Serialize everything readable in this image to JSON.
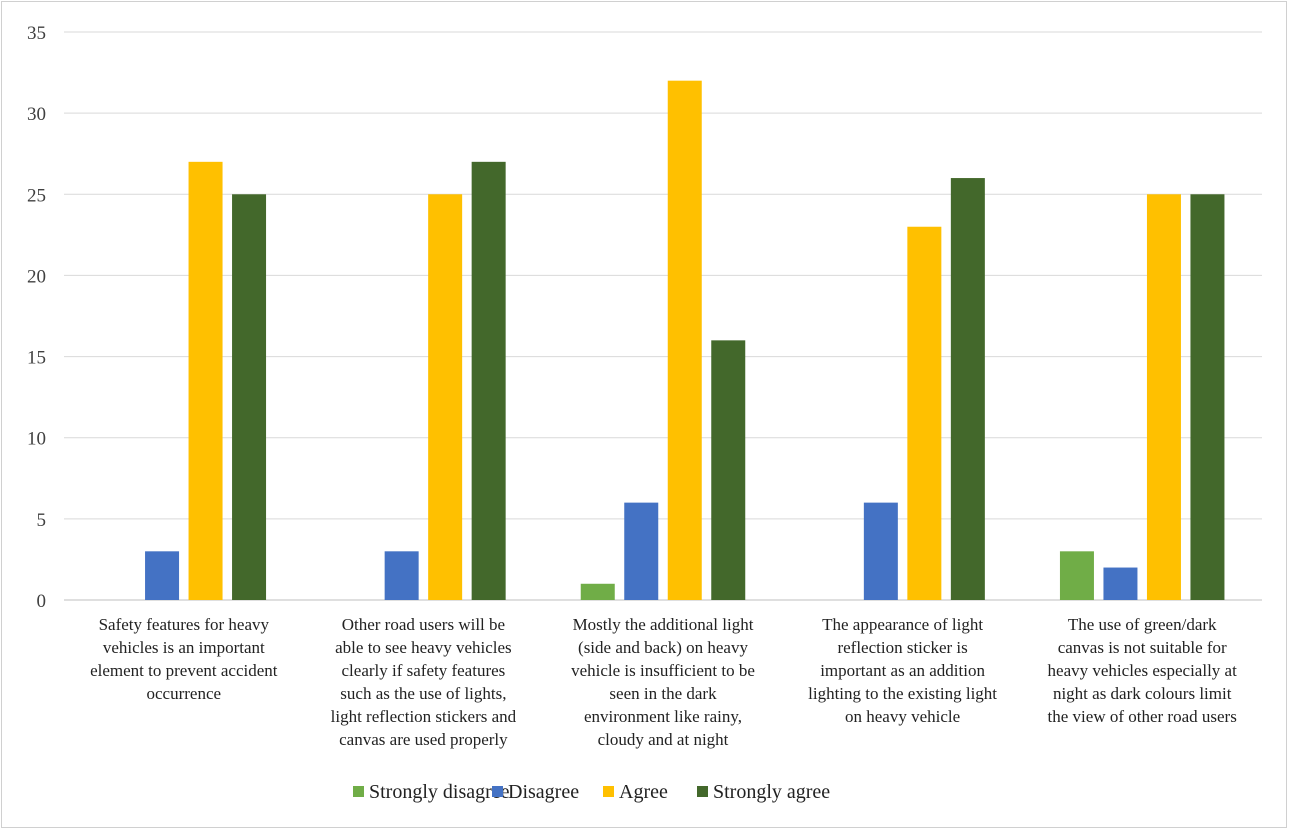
{
  "chart_data": {
    "type": "bar",
    "title": "",
    "xlabel": "",
    "ylabel": "",
    "ylim": [
      0,
      35
    ],
    "yticks": [
      0,
      5,
      10,
      15,
      20,
      25,
      30,
      35
    ],
    "grid": true,
    "legend_position": "bottom",
    "categories": [
      "Safety features for heavy vehicles is an important element to prevent accident occurrence",
      "Other road users will be able to see heavy vehicles clearly if safety features such as the use of lights, light reflection stickers and canvas are used properly",
      "Mostly the additional light (side and back) on heavy vehicle is insufficient to be seen in the dark environment like rainy, cloudy and at night",
      "The appearance of light reflection sticker is important as an addition lighting to the existing light on heavy vehicle",
      "The use of green/dark canvas is not suitable for heavy vehicles especially at night as dark colours limit the view of other road users"
    ],
    "category_lines": [
      [
        "Safety features for heavy",
        "vehicles is an important",
        "element to prevent accident",
        "occurrence"
      ],
      [
        "Other road users will be",
        "able to see heavy vehicles",
        "clearly if safety features",
        "such as the use of lights,",
        "light reflection stickers and",
        "canvas are used properly"
      ],
      [
        "Mostly the additional light",
        "(side and back) on heavy",
        "vehicle is insufficient to be",
        "seen in the dark",
        "environment like rainy,",
        "cloudy and at night"
      ],
      [
        "The appearance of light",
        "reflection sticker is",
        "important as an addition",
        "lighting to the existing light",
        "on heavy vehicle"
      ],
      [
        "The use of green/dark",
        "canvas is not suitable for",
        "heavy vehicles especially at",
        "night as dark colours limit",
        "the view of other road users"
      ]
    ],
    "series": [
      {
        "name": "Strongly disagree",
        "color": "#70ad47",
        "values": [
          0,
          0,
          1,
          0,
          3
        ]
      },
      {
        "name": "Disagree",
        "color": "#4472c4",
        "values": [
          3,
          3,
          6,
          6,
          2
        ]
      },
      {
        "name": "Agree",
        "color": "#ffc000",
        "values": [
          27,
          25,
          32,
          23,
          25
        ]
      },
      {
        "name": "Strongly agree",
        "color": "#43682b",
        "values": [
          25,
          27,
          16,
          26,
          25
        ]
      }
    ]
  }
}
